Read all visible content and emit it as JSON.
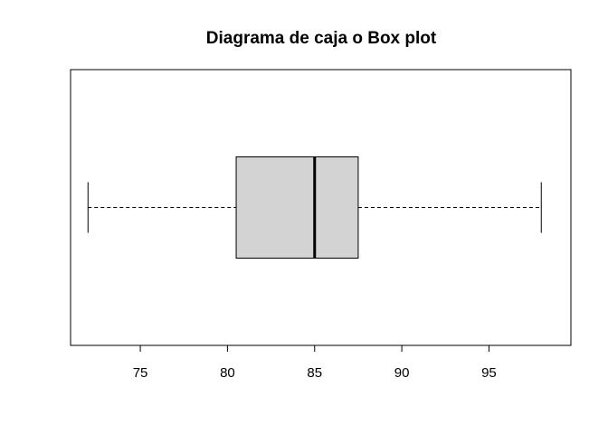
{
  "chart_data": {
    "type": "box",
    "orientation": "horizontal",
    "title": "Diagrama de caja o Box plot",
    "xlabel": "",
    "ylabel": "",
    "xlim": [
      71,
      99.7
    ],
    "x_ticks": [
      75,
      80,
      85,
      90,
      95
    ],
    "x_tick_labels": [
      "75",
      "80",
      "85",
      "90",
      "95"
    ],
    "box": {
      "min": 72,
      "q1": 80.5,
      "median": 85,
      "q3": 87.5,
      "max": 98
    },
    "box_fill": "#d3d3d3",
    "line_color": "#000000",
    "grid": false
  }
}
